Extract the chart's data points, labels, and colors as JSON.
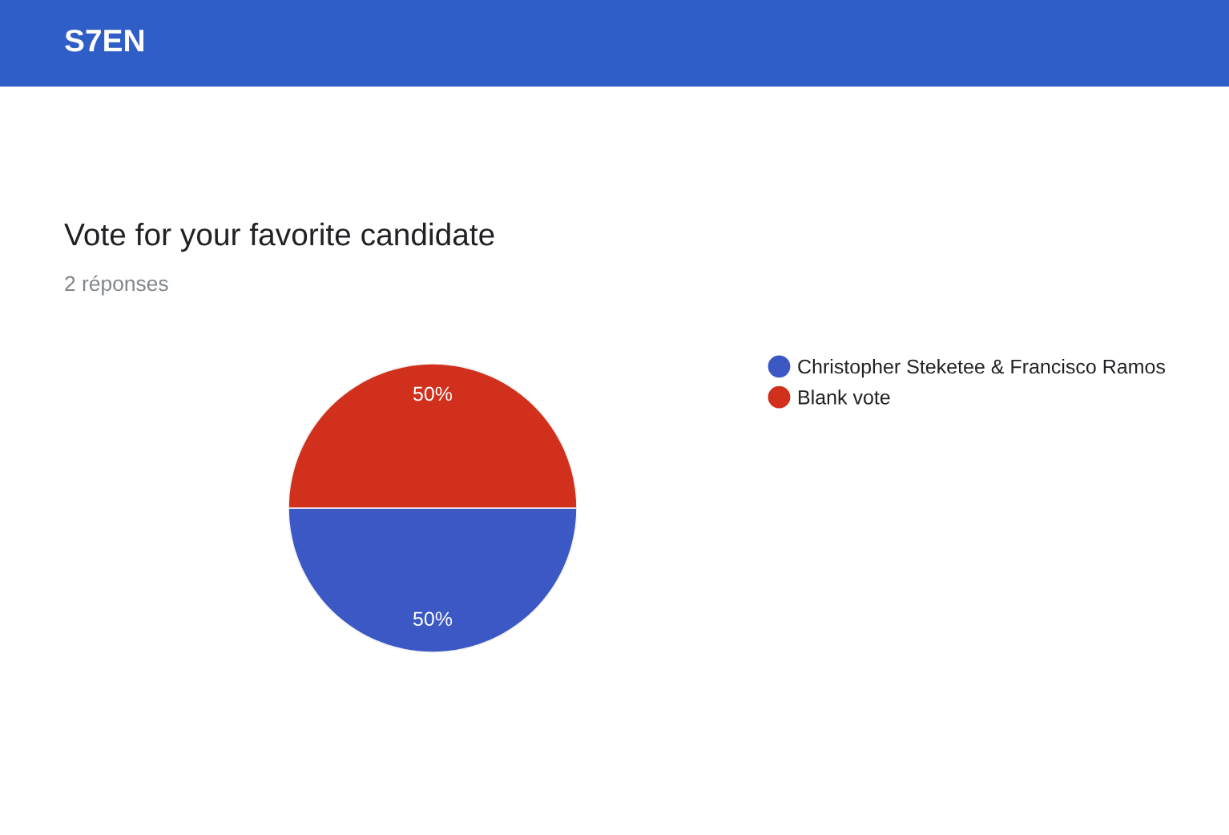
{
  "chart_data": {
    "type": "pie",
    "title": "Vote for your favorite candidate",
    "subtitle": "2 réponses",
    "annotations": [
      "S7EN"
    ],
    "categories": [
      "Christopher Steketee & Francisco Ramos",
      "Blank vote"
    ],
    "values": [
      50,
      50
    ],
    "colors": [
      "#3b58c5",
      "#d0301c"
    ],
    "value_labels": [
      "50%",
      "50%"
    ],
    "legend": "right"
  }
}
